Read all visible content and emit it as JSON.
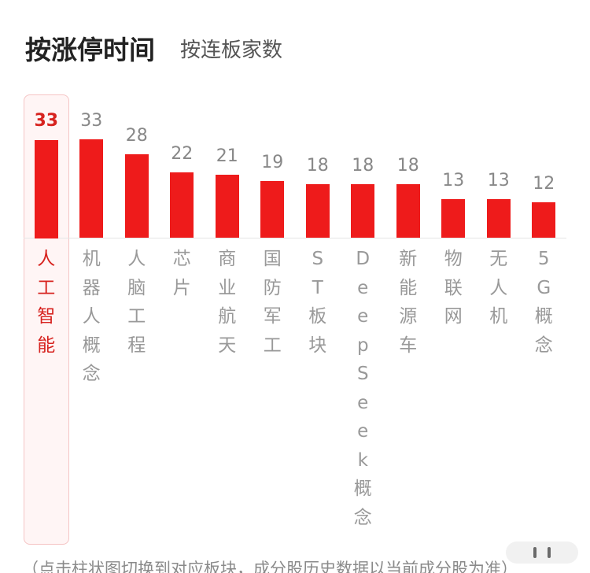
{
  "tabs": [
    {
      "label": "按涨停时间",
      "active": true
    },
    {
      "label": "按连板家数",
      "active": false
    }
  ],
  "chart_data": {
    "type": "bar",
    "categories": [
      "人工智能",
      "机器人概念",
      "人脑工程",
      "芯片",
      "商业航天",
      "国防军工",
      "ST板块",
      "DeepSeek概念",
      "新能源车",
      "物联网",
      "无人机",
      "5G概念"
    ],
    "values": [
      33,
      33,
      28,
      22,
      21,
      19,
      18,
      18,
      18,
      13,
      13,
      12
    ],
    "selected_index": 0,
    "grid": false
  },
  "footer_note": "（点击柱状图切换到对应板块，成分股历史数据以当前成分股为准）",
  "colors": {
    "bar": "#ee1b1b",
    "selected_text": "#d7231f",
    "selected_bg": "#fff5f5",
    "selected_border": "#f5c4c4",
    "label": "#999999",
    "value": "#888888"
  }
}
